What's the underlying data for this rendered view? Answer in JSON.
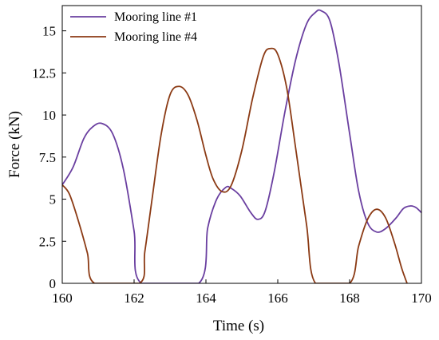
{
  "chart_data": {
    "type": "line",
    "title": "",
    "xlabel": "Time (s)",
    "ylabel": "Force (kN)",
    "xlim": [
      160,
      170
    ],
    "ylim": [
      0,
      16.5
    ],
    "xticks": [
      160,
      162,
      164,
      166,
      168,
      170
    ],
    "xtick_labels": [
      "160",
      "162",
      "164",
      "166",
      "168",
      "170"
    ],
    "yticks": [
      0,
      2.5,
      5,
      7.5,
      10,
      12.5,
      15
    ],
    "ytick_labels": [
      "0",
      "2.5",
      "5",
      "7.5",
      "10",
      "12.5",
      "15"
    ],
    "grid": false,
    "legend_position": "top-left",
    "series": [
      {
        "name": "Mooring line #1",
        "color": "#6a3fa0",
        "points": [
          [
            160.0,
            5.85
          ],
          [
            160.3,
            6.9
          ],
          [
            160.6,
            8.6
          ],
          [
            160.85,
            9.3
          ],
          [
            161.1,
            9.5
          ],
          [
            161.4,
            8.9
          ],
          [
            161.7,
            6.8
          ],
          [
            162.0,
            3.1
          ],
          [
            162.2,
            0.0
          ],
          [
            163.8,
            0.0
          ],
          [
            164.05,
            3.3
          ],
          [
            164.3,
            5.0
          ],
          [
            164.55,
            5.7
          ],
          [
            164.7,
            5.65
          ],
          [
            164.95,
            5.2
          ],
          [
            165.25,
            4.2
          ],
          [
            165.45,
            3.8
          ],
          [
            165.65,
            4.3
          ],
          [
            165.9,
            6.6
          ],
          [
            166.2,
            10.2
          ],
          [
            166.5,
            13.3
          ],
          [
            166.8,
            15.4
          ],
          [
            167.05,
            16.1
          ],
          [
            167.2,
            16.2
          ],
          [
            167.45,
            15.6
          ],
          [
            167.7,
            13.1
          ],
          [
            168.0,
            8.9
          ],
          [
            168.25,
            5.5
          ],
          [
            168.5,
            3.6
          ],
          [
            168.75,
            3.05
          ],
          [
            169.0,
            3.25
          ],
          [
            169.3,
            3.9
          ],
          [
            169.5,
            4.45
          ],
          [
            169.7,
            4.6
          ],
          [
            169.85,
            4.5
          ],
          [
            170.0,
            4.2
          ]
        ]
      },
      {
        "name": "Mooring line #4",
        "color": "#8b3a14",
        "points": [
          [
            160.0,
            5.85
          ],
          [
            160.2,
            5.3
          ],
          [
            160.45,
            3.7
          ],
          [
            160.7,
            1.8
          ],
          [
            160.9,
            0.0
          ],
          [
            162.15,
            0.0
          ],
          [
            162.3,
            1.9
          ],
          [
            162.5,
            5.0
          ],
          [
            162.75,
            8.8
          ],
          [
            163.0,
            11.2
          ],
          [
            163.25,
            11.7
          ],
          [
            163.5,
            11.2
          ],
          [
            163.75,
            9.7
          ],
          [
            164.0,
            7.6
          ],
          [
            164.2,
            6.2
          ],
          [
            164.45,
            5.45
          ],
          [
            164.7,
            5.8
          ],
          [
            165.0,
            7.9
          ],
          [
            165.3,
            11.0
          ],
          [
            165.6,
            13.5
          ],
          [
            165.8,
            13.95
          ],
          [
            166.0,
            13.6
          ],
          [
            166.25,
            11.6
          ],
          [
            166.5,
            8.0
          ],
          [
            166.8,
            3.5
          ],
          [
            167.05,
            0.0
          ],
          [
            168.0,
            0.0
          ],
          [
            168.25,
            2.2
          ],
          [
            168.5,
            3.8
          ],
          [
            168.75,
            4.4
          ],
          [
            169.0,
            3.9
          ],
          [
            169.25,
            2.4
          ],
          [
            169.45,
            0.9
          ],
          [
            169.6,
            0.0
          ]
        ]
      }
    ]
  }
}
